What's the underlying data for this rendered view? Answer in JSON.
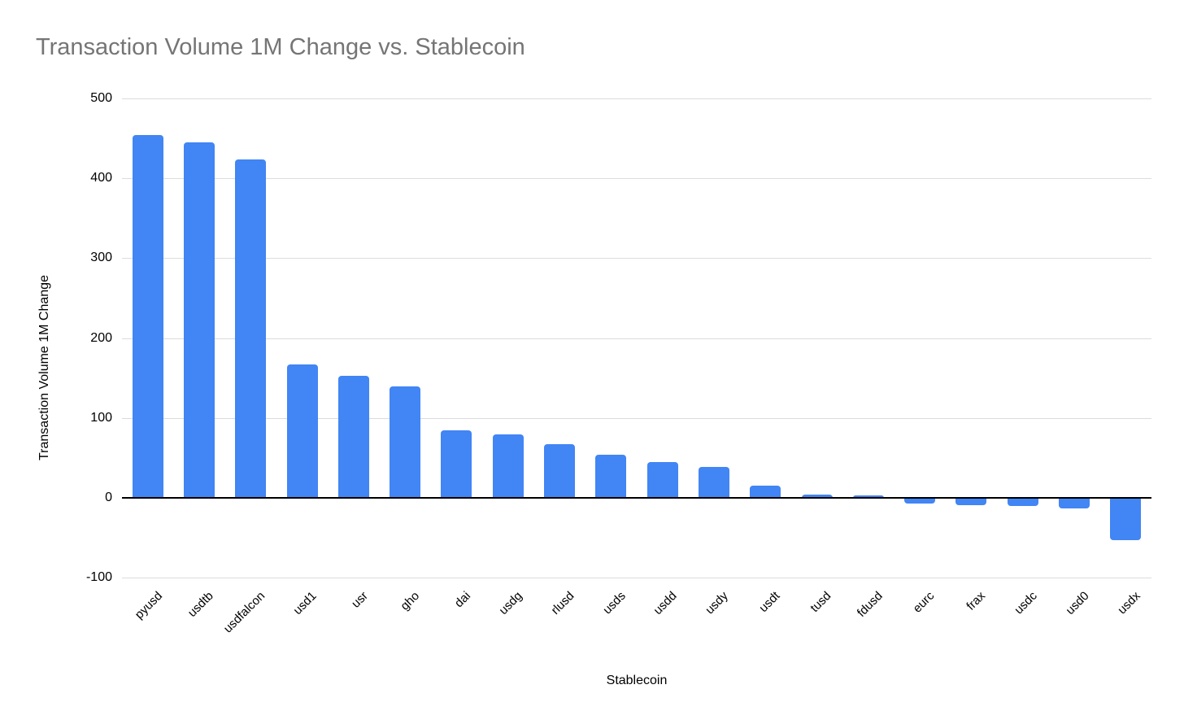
{
  "chart": {
    "background": "#ffffff",
    "bar_color": "#4285f4",
    "gridline_color": "#dcdcdc",
    "axis_line_color": "#000000",
    "title_color": "#757575",
    "text_color": "#000000"
  },
  "chart_data": {
    "type": "bar",
    "title": "Transaction Volume 1M Change vs. Stablecoin",
    "xlabel": "Stablecoin",
    "ylabel": "Transaction Volume 1M Change",
    "ylim": [
      -100,
      500
    ],
    "yticks": [
      500,
      400,
      300,
      200,
      100,
      0,
      -100
    ],
    "grid": true,
    "legend_position": "none",
    "categories": [
      "pyusd",
      "usdtb",
      "usdfalcon",
      "usd1",
      "usr",
      "gho",
      "dai",
      "usdg",
      "rlusd",
      "usds",
      "usdd",
      "usdy",
      "usdt",
      "tusd",
      "fdusd",
      "eurc",
      "frax",
      "usdc",
      "usd0",
      "usdx"
    ],
    "values": [
      454,
      445,
      424,
      167,
      153,
      139,
      84,
      79,
      67,
      54,
      45,
      39,
      15,
      4,
      3,
      -7,
      -9,
      -10,
      -13,
      -53
    ]
  }
}
